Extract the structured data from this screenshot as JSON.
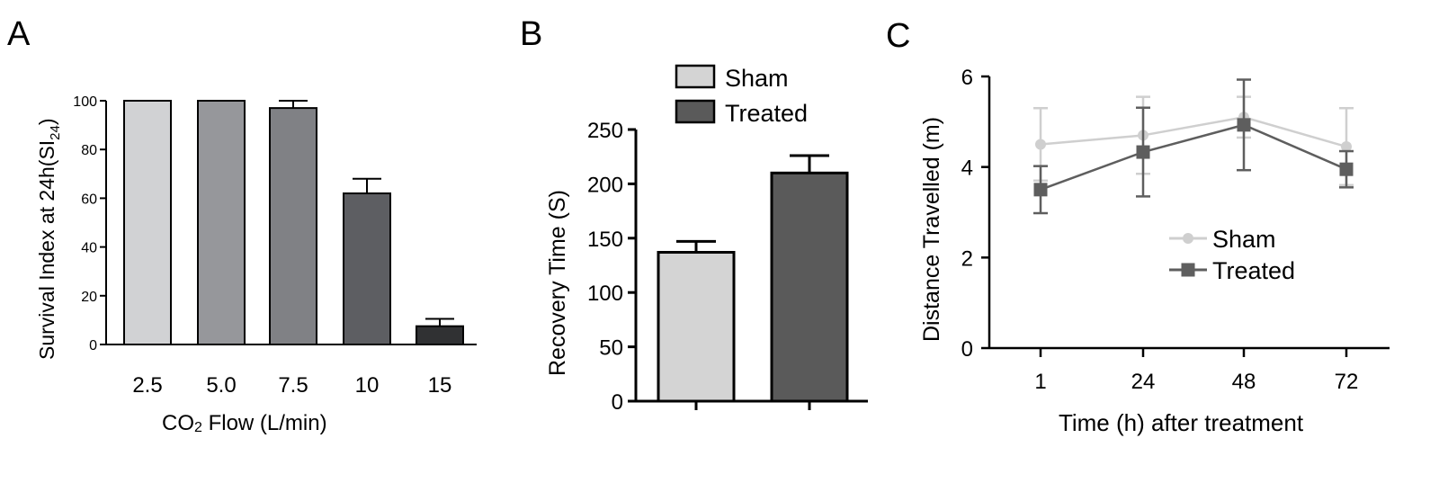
{
  "chart_data": [
    {
      "panel": "A",
      "type": "bar",
      "categories": [
        "2.5",
        "5.0",
        "7.5",
        "10",
        "15"
      ],
      "values": [
        100,
        100,
        97,
        62,
        7.5
      ],
      "errors": [
        0,
        0,
        3,
        6,
        3
      ],
      "colors": [
        "#d1d2d4",
        "#96979b",
        "#808185",
        "#5d5e62",
        "#303133"
      ],
      "xlabel_main": "CO",
      "xlabel_sub": "2",
      "xlabel_rest": " Flow (L/min)",
      "ylabel_main": "Survival Index at 24h(SI",
      "ylabel_sub": "24",
      "ylabel_close": ")",
      "ylim": [
        0,
        100
      ],
      "yticks": [
        0,
        20,
        40,
        60,
        80,
        100
      ]
    },
    {
      "panel": "B",
      "type": "bar",
      "categories": [
        "Sham",
        "Treated"
      ],
      "values": [
        137,
        210
      ],
      "errors": [
        10,
        16
      ],
      "colors": [
        "#d4d4d4",
        "#5a5a5a"
      ],
      "ylabel": "Recovery Time (S)",
      "ylim": [
        0,
        250
      ],
      "yticks": [
        0,
        50,
        100,
        150,
        200,
        250
      ],
      "legend": [
        "Sham",
        "Treated"
      ],
      "legend_position": "top"
    },
    {
      "panel": "C",
      "type": "line",
      "x": [
        "1",
        "24",
        "48",
        "72"
      ],
      "series": [
        {
          "name": "Sham",
          "values": [
            4.5,
            4.7,
            5.1,
            4.45
          ],
          "errors": [
            0.8,
            0.85,
            0.45,
            0.85
          ],
          "color": "#cfcfcf",
          "marker": "circle"
        },
        {
          "name": "Treated",
          "values": [
            3.5,
            4.33,
            4.93,
            3.95
          ],
          "errors": [
            0.52,
            0.98,
            1.0,
            0.4
          ],
          "color": "#5e5e5e",
          "marker": "square"
        }
      ],
      "xlabel": "Time (h) after treatment",
      "ylabel": "Distance Travelled (m)",
      "ylim": [
        0,
        6
      ],
      "yticks": [
        0,
        2,
        4,
        6
      ],
      "legend_position": "center-bottom"
    }
  ],
  "panel_labels": [
    "A",
    "B",
    "C"
  ]
}
